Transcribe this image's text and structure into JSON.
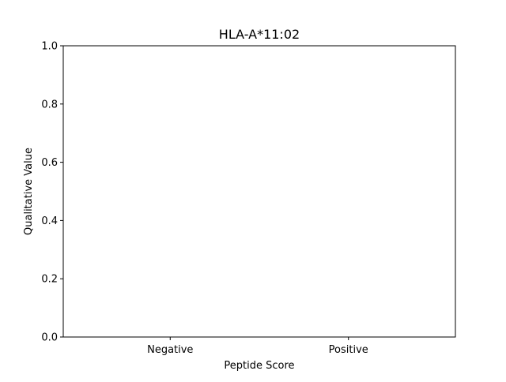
{
  "chart_data": {
    "type": "bar",
    "title": "HLA-A*11:02",
    "xlabel": "Peptide Score",
    "ylabel": "Qualitative Value",
    "categories": [
      "Negative",
      "Positive"
    ],
    "values": [
      0,
      0
    ],
    "ylim": [
      0,
      1
    ],
    "yticks": [
      0.0,
      0.2,
      0.4,
      0.6,
      0.8,
      1.0
    ],
    "ytick_labels": [
      "0.0",
      "0.2",
      "0.4",
      "0.6",
      "0.8",
      "1.0"
    ],
    "grid": false,
    "legend": "none"
  }
}
